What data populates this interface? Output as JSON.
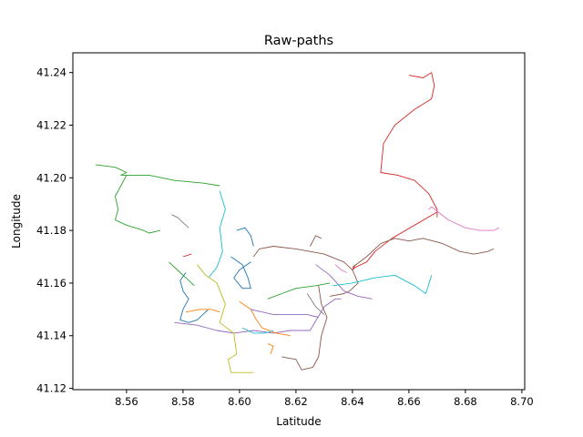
{
  "chart_data": {
    "type": "line",
    "title": "Raw-paths",
    "xlabel": "Latitude",
    "ylabel": "Longitude",
    "xlim": [
      8.541,
      8.701
    ],
    "ylim": [
      41.1195,
      41.2475
    ],
    "xticks": [
      8.56,
      8.58,
      8.6,
      8.62,
      8.64,
      8.66,
      8.68,
      8.7
    ],
    "xtick_labels": [
      "8.56",
      "8.58",
      "8.60",
      "8.62",
      "8.64",
      "8.66",
      "8.68",
      "8.70"
    ],
    "yticks": [
      41.12,
      41.14,
      41.16,
      41.18,
      41.2,
      41.22,
      41.24
    ],
    "ytick_labels": [
      "41.12",
      "41.14",
      "41.16",
      "41.18",
      "41.20",
      "41.22",
      "41.24"
    ],
    "grid": false,
    "legend": "none",
    "series": [
      {
        "color": "#1f77b4",
        "x": [
          8.581,
          8.579,
          8.58,
          8.582,
          8.58,
          8.579,
          8.582,
          8.585,
          8.589
        ],
        "y": [
          41.164,
          41.161,
          41.157,
          41.154,
          41.15,
          41.146,
          41.145,
          41.146,
          41.15
        ]
      },
      {
        "color": "#ff7f0e",
        "x": [
          8.581,
          8.586,
          8.59,
          8.593
        ],
        "y": [
          41.149,
          41.15,
          41.15,
          41.149
        ]
      },
      {
        "color": "#2ca02c",
        "x": [
          8.549,
          8.556,
          8.56,
          8.558,
          8.56,
          8.568,
          8.577,
          8.587,
          8.593
        ],
        "y": [
          41.205,
          41.204,
          41.202,
          41.201,
          41.201,
          41.201,
          41.199,
          41.198,
          41.197
        ]
      },
      {
        "color": "#2ca02c",
        "x": [
          8.56,
          8.558,
          8.556,
          8.557,
          8.556,
          8.56,
          8.566,
          8.568,
          8.572
        ],
        "y": [
          41.201,
          41.197,
          41.193,
          41.188,
          41.184,
          41.182,
          41.18,
          41.179,
          41.18
        ]
      },
      {
        "color": "#17becf",
        "x": [
          8.593,
          8.595,
          8.593,
          8.594,
          8.592,
          8.589
        ],
        "y": [
          41.195,
          41.188,
          41.181,
          41.172,
          41.166,
          41.162
        ]
      },
      {
        "color": "#d62728",
        "x": [
          8.66,
          8.665,
          8.668,
          8.669,
          8.668,
          8.662,
          8.655,
          8.651,
          8.65,
          8.656,
          8.662,
          8.667,
          8.67,
          8.67
        ],
        "y": [
          41.239,
          41.238,
          41.24,
          41.235,
          41.23,
          41.226,
          41.22,
          41.213,
          41.202,
          41.201,
          41.199,
          41.194,
          41.188,
          41.185
        ]
      },
      {
        "color": "#d62728",
        "x": [
          8.67,
          8.662,
          8.654,
          8.648,
          8.645,
          8.641,
          8.64,
          8.641
        ],
        "y": [
          41.187,
          41.182,
          41.177,
          41.172,
          41.168,
          41.166,
          41.165,
          41.167
        ]
      },
      {
        "color": "#8c564b",
        "x": [
          8.64,
          8.645,
          8.65,
          8.655,
          8.66,
          8.665,
          8.672,
          8.678,
          8.683,
          8.688,
          8.69
        ],
        "y": [
          41.166,
          41.17,
          41.175,
          41.177,
          41.176,
          41.177,
          41.175,
          41.172,
          41.171,
          41.172,
          41.173
        ]
      },
      {
        "color": "#8c564b",
        "x": [
          8.605,
          8.607,
          8.612,
          8.62,
          8.63,
          8.637,
          8.64,
          8.642,
          8.639,
          8.637,
          8.632
        ],
        "y": [
          41.17,
          41.173,
          41.174,
          41.173,
          41.171,
          41.168,
          41.165,
          41.16,
          41.157,
          41.156,
          41.155
        ]
      },
      {
        "color": "#e377c2",
        "x": [
          8.667,
          8.668,
          8.674,
          8.68,
          8.685,
          8.69,
          8.692
        ],
        "y": [
          41.188,
          41.189,
          41.184,
          41.181,
          41.18,
          41.18,
          41.181
        ]
      },
      {
        "color": "#9467bd",
        "x": [
          8.577,
          8.585,
          8.592,
          8.598,
          8.605,
          8.612,
          8.618,
          8.625,
          8.63,
          8.634,
          8.636
        ],
        "y": [
          41.145,
          41.144,
          41.142,
          41.141,
          41.142,
          41.141,
          41.142,
          41.142,
          41.151,
          41.154,
          41.154
        ]
      },
      {
        "color": "#9467bd",
        "x": [
          8.627,
          8.632,
          8.637,
          8.642,
          8.647
        ],
        "y": [
          41.167,
          41.163,
          41.157,
          41.155,
          41.154
        ]
      },
      {
        "color": "#17becf",
        "x": [
          8.633,
          8.64,
          8.648,
          8.655,
          8.662,
          8.666,
          8.668
        ],
        "y": [
          41.159,
          41.16,
          41.162,
          41.163,
          41.159,
          41.156,
          41.163
        ]
      },
      {
        "color": "#bcbd22",
        "x": [
          8.585,
          8.588,
          8.592,
          8.595,
          8.593,
          8.598,
          8.599,
          8.596,
          8.597,
          8.605
        ],
        "y": [
          41.167,
          41.163,
          41.16,
          41.152,
          41.145,
          41.141,
          41.133,
          41.131,
          41.126,
          41.126
        ]
      },
      {
        "color": "#8c564b",
        "x": [
          8.615,
          8.62,
          8.622,
          8.626,
          8.628,
          8.629,
          8.631,
          8.629,
          8.628
        ],
        "y": [
          41.132,
          41.131,
          41.127,
          41.128,
          41.132,
          41.14,
          41.147,
          41.152,
          41.159
        ]
      },
      {
        "color": "#2ca02c",
        "x": [
          8.61,
          8.615,
          8.62,
          8.627,
          8.632
        ],
        "y": [
          41.154,
          41.156,
          41.158,
          41.159,
          41.16
        ]
      },
      {
        "color": "#1f77b4",
        "x": [
          8.597,
          8.601,
          8.603,
          8.604,
          8.601,
          8.598,
          8.6,
          8.604
        ],
        "y": [
          41.17,
          41.167,
          41.162,
          41.158,
          41.158,
          41.162,
          41.165,
          41.168
        ]
      },
      {
        "color": "#ff7f0e",
        "x": [
          8.6,
          8.604,
          8.606,
          8.608,
          8.613,
          8.618
        ],
        "y": [
          41.153,
          41.15,
          41.146,
          41.143,
          41.141,
          41.14
        ]
      },
      {
        "color": "#9467bd",
        "x": [
          8.604,
          8.608,
          8.612,
          8.618,
          8.624,
          8.628
        ],
        "y": [
          41.15,
          41.149,
          41.148,
          41.148,
          41.148,
          41.147
        ]
      },
      {
        "color": "#17becf",
        "x": [
          8.601,
          8.605,
          8.609,
          8.612
        ],
        "y": [
          41.143,
          41.141,
          41.141,
          41.142
        ]
      },
      {
        "color": "#ff7f0e",
        "x": [
          8.61,
          8.612,
          8.611
        ],
        "y": [
          41.137,
          41.136,
          41.133
        ]
      },
      {
        "color": "#7f7f7f",
        "x": [
          8.576,
          8.578,
          8.58,
          8.582
        ],
        "y": [
          41.186,
          41.185,
          41.183,
          41.181
        ]
      },
      {
        "color": "#2ca02c",
        "x": [
          8.575,
          8.578,
          8.581,
          8.584
        ],
        "y": [
          41.168,
          41.165,
          41.162,
          41.159
        ]
      },
      {
        "color": "#1f77b4",
        "x": [
          8.599,
          8.602,
          8.604,
          8.605
        ],
        "y": [
          41.18,
          41.181,
          41.178,
          41.174
        ]
      },
      {
        "color": "#8c564b",
        "x": [
          8.625,
          8.627,
          8.629
        ],
        "y": [
          41.174,
          41.178,
          41.177
        ]
      },
      {
        "color": "#e377c2",
        "x": [
          8.634,
          8.636,
          8.638
        ],
        "y": [
          41.167,
          41.165,
          41.164
        ]
      },
      {
        "color": "#7f7f7f",
        "x": [
          8.624,
          8.627,
          8.63
        ],
        "y": [
          41.156,
          41.151,
          41.148
        ]
      },
      {
        "color": "#d62728",
        "x": [
          8.58,
          8.583
        ],
        "y": [
          41.17,
          41.171
        ]
      }
    ]
  }
}
